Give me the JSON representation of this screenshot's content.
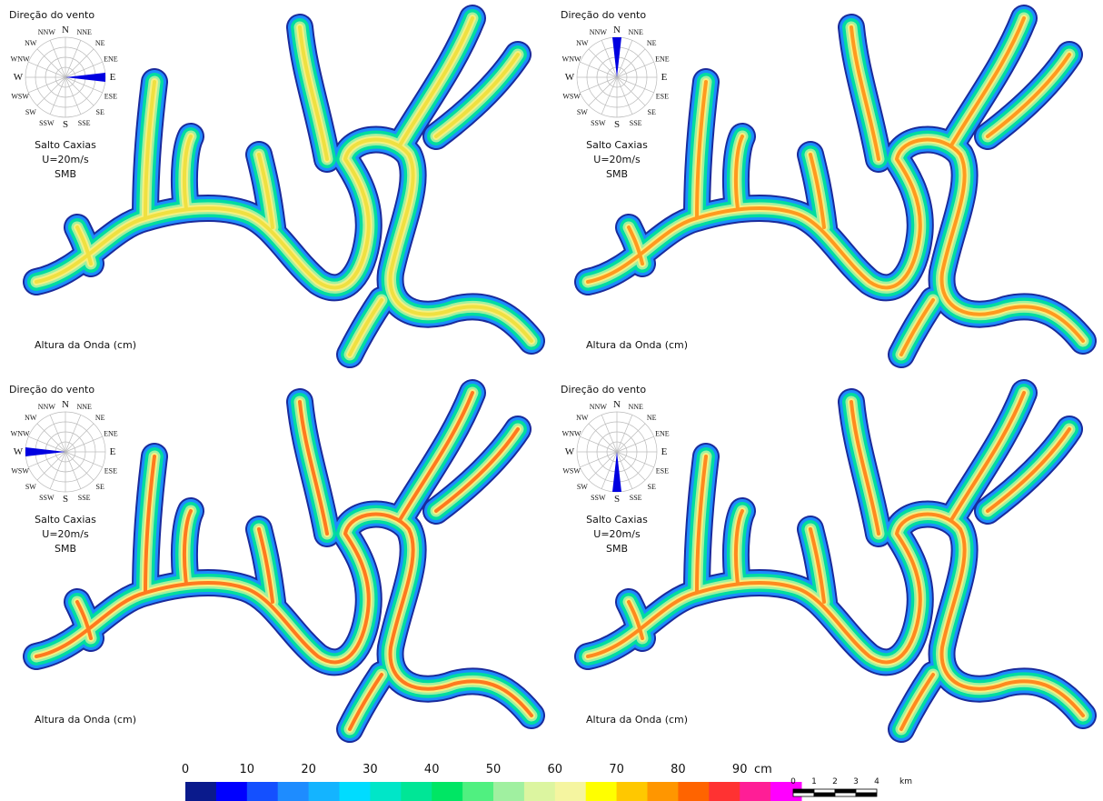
{
  "panels": [
    {
      "wind_title": "Direção do vento",
      "compass": [
        "N",
        "NNE",
        "NE",
        "ENE",
        "E",
        "ESE",
        "SE",
        "SSE",
        "S",
        "SSW",
        "SW",
        "WSW",
        "W",
        "WNW",
        "NW",
        "NNW"
      ],
      "site": "Salto Caxias",
      "speed": "U=20m/s",
      "model": "SMB",
      "caption": "Altura da Onda (cm)"
    },
    {
      "wind_title": "Direção do vento",
      "compass": [
        "N",
        "NNE",
        "NE",
        "ENE",
        "E",
        "ESE",
        "SE",
        "SSE",
        "S",
        "SSW",
        "SW",
        "WSW",
        "W",
        "WNW",
        "NW",
        "NNW"
      ],
      "site": "Salto Caxias",
      "speed": "U=20m/s",
      "model": "SMB",
      "caption": "Altura da Onda (cm)"
    },
    {
      "wind_title": "Direção do vento",
      "compass": [
        "N",
        "NNE",
        "NE",
        "ENE",
        "E",
        "ESE",
        "SE",
        "SSE",
        "S",
        "SSW",
        "SW",
        "WSW",
        "W",
        "WNW",
        "NW",
        "NNW"
      ],
      "site": "Salto Caxias",
      "speed": "U=20m/s",
      "model": "SMB",
      "caption": "Altura da Onda (cm)"
    },
    {
      "wind_title": "Direção do vento",
      "compass": [
        "N",
        "NNE",
        "NE",
        "ENE",
        "E",
        "ESE",
        "SE",
        "SSE",
        "S",
        "SSW",
        "SW",
        "WSW",
        "W",
        "WNW",
        "NW",
        "NNW"
      ],
      "site": "Salto Caxias",
      "speed": "U=20m/s",
      "model": "SMB",
      "caption": "Altura da Onda (cm)"
    }
  ],
  "legend": {
    "ticks": [
      0,
      10,
      20,
      30,
      40,
      50,
      60,
      70,
      80,
      90
    ],
    "unit": "cm",
    "colors": [
      "#0a1a8c",
      "#0000ff",
      "#1450ff",
      "#1e8cff",
      "#14b4ff",
      "#00dcff",
      "#00e6c8",
      "#00e696",
      "#00e664",
      "#50f080",
      "#a0f0a0",
      "#dcf5a0",
      "#f5f5a0",
      "#ffff00",
      "#ffc800",
      "#ff9600",
      "#ff6400",
      "#ff3232",
      "#ff1e96",
      "#ff00ff"
    ]
  },
  "scale_bar": {
    "ticks": [
      0,
      1,
      2,
      3,
      4
    ],
    "unit": "km"
  }
}
